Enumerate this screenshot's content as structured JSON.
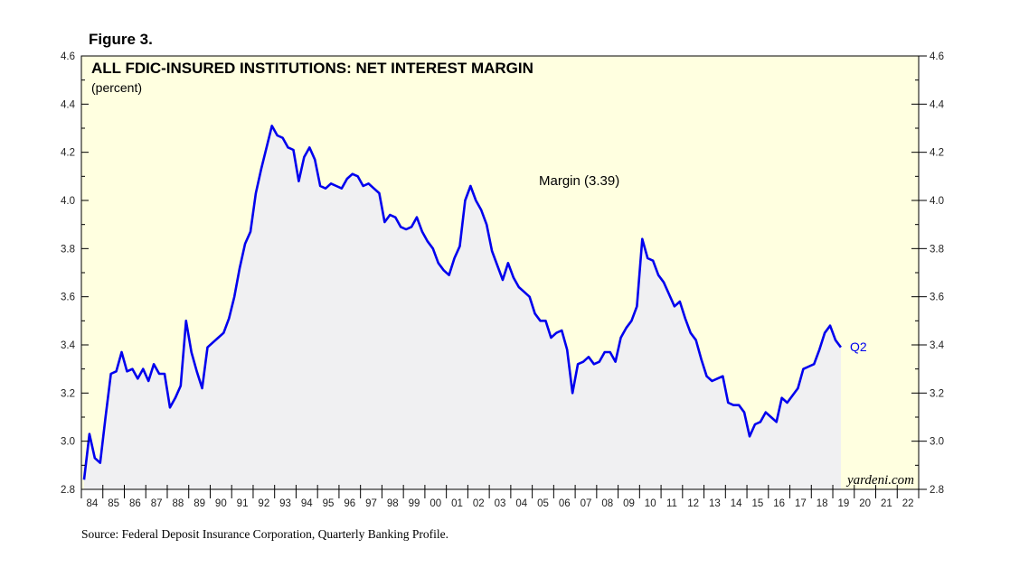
{
  "figure_label": "Figure 3.",
  "source_note": "Source: Federal Deposit Insurance Corporation, Quarterly Banking Profile.",
  "watermark": "yardeni.com",
  "colors": {
    "plot_background": "#ffffe0",
    "area_fill": "#f0f0f2",
    "line": "#0000ee",
    "axis": "#000000"
  },
  "chart_data": {
    "type": "area",
    "title": "ALL FDIC-INSURED INSTITUTIONS: NET INTEREST MARGIN",
    "subtitle": "(percent)",
    "annotation": "Margin (3.39)",
    "end_label": "Q2",
    "series_name": "Margin",
    "ylim": [
      2.8,
      4.6
    ],
    "yticks": [
      2.8,
      3.0,
      3.2,
      3.4,
      3.6,
      3.8,
      4.0,
      4.2,
      4.4,
      4.6
    ],
    "ytick_labels": [
      "2.8",
      "3.0",
      "3.2",
      "3.4",
      "3.6",
      "3.8",
      "4.0",
      "4.2",
      "4.4",
      "4.6"
    ],
    "xlim": [
      1984,
      2023
    ],
    "xtick_labels": [
      "84",
      "85",
      "86",
      "87",
      "88",
      "89",
      "90",
      "91",
      "92",
      "93",
      "94",
      "95",
      "96",
      "97",
      "98",
      "99",
      "00",
      "01",
      "02",
      "03",
      "04",
      "05",
      "06",
      "07",
      "08",
      "09",
      "10",
      "11",
      "12",
      "13",
      "14",
      "15",
      "16",
      "17",
      "18",
      "19",
      "20",
      "21",
      "22"
    ],
    "x_start": 1984.0,
    "x_step": 0.25,
    "values": [
      2.84,
      3.03,
      2.93,
      2.91,
      3.1,
      3.28,
      3.29,
      3.37,
      3.29,
      3.3,
      3.26,
      3.3,
      3.25,
      3.32,
      3.28,
      3.28,
      3.14,
      3.18,
      3.23,
      3.5,
      3.37,
      3.29,
      3.22,
      3.39,
      3.41,
      3.43,
      3.45,
      3.51,
      3.6,
      3.72,
      3.82,
      3.87,
      4.03,
      4.13,
      4.22,
      4.31,
      4.27,
      4.26,
      4.22,
      4.21,
      4.08,
      4.18,
      4.22,
      4.17,
      4.06,
      4.05,
      4.07,
      4.06,
      4.05,
      4.09,
      4.11,
      4.1,
      4.06,
      4.07,
      4.05,
      4.03,
      3.91,
      3.94,
      3.93,
      3.89,
      3.88,
      3.89,
      3.93,
      3.87,
      3.83,
      3.8,
      3.74,
      3.71,
      3.69,
      3.76,
      3.81,
      4.0,
      4.06,
      4.0,
      3.96,
      3.9,
      3.79,
      3.73,
      3.67,
      3.74,
      3.68,
      3.64,
      3.62,
      3.6,
      3.53,
      3.5,
      3.5,
      3.43,
      3.45,
      3.46,
      3.38,
      3.2,
      3.32,
      3.33,
      3.35,
      3.32,
      3.33,
      3.37,
      3.37,
      3.33,
      3.43,
      3.47,
      3.5,
      3.56,
      3.84,
      3.76,
      3.75,
      3.69,
      3.66,
      3.61,
      3.56,
      3.58,
      3.51,
      3.45,
      3.42,
      3.34,
      3.27,
      3.25,
      3.26,
      3.27,
      3.16,
      3.15,
      3.15,
      3.12,
      3.02,
      3.07,
      3.08,
      3.12,
      3.1,
      3.08,
      3.18,
      3.16,
      3.19,
      3.22,
      3.3,
      3.31,
      3.32,
      3.38,
      3.45,
      3.48,
      3.42,
      3.39
    ]
  }
}
